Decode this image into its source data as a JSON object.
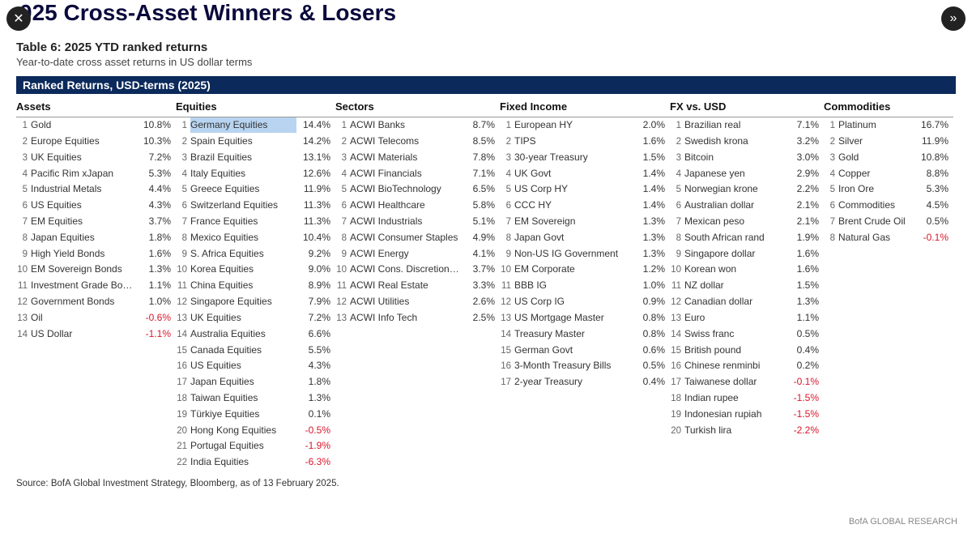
{
  "title": "025 Cross-Asset Winners & Losers",
  "table_caption": "Table 6: 2025 YTD ranked returns",
  "subcaption": "Year-to-date cross asset returns in US dollar terms",
  "banner": "Ranked Returns, USD-terms (2025)",
  "source": "Source: BofA Global Investment Strategy, Bloomberg, as of 13 February 2025.",
  "brand": "BofA GLOBAL RESEARCH",
  "colors": {
    "heading": "#0a0a3c",
    "banner_bg": "#0b2a5b",
    "banner_fg": "#ffffff",
    "negative": "#d6172b",
    "highlight_bg": "#b8d4f0",
    "text": "#333333",
    "rank": "#666666"
  },
  "columns": [
    {
      "header": "Assets",
      "rows": [
        {
          "rank": "1",
          "label": "Gold",
          "val": "10.8%"
        },
        {
          "rank": "2",
          "label": "Europe Equities",
          "val": "10.3%"
        },
        {
          "rank": "3",
          "label": "UK Equities",
          "val": "7.2%"
        },
        {
          "rank": "4",
          "label": "Pacific Rim xJapan",
          "val": "5.3%"
        },
        {
          "rank": "5",
          "label": "Industrial Metals",
          "val": "4.4%"
        },
        {
          "rank": "6",
          "label": "US Equities",
          "val": "4.3%"
        },
        {
          "rank": "7",
          "label": "EM Equities",
          "val": "3.7%"
        },
        {
          "rank": "8",
          "label": "Japan Equities",
          "val": "1.8%"
        },
        {
          "rank": "9",
          "label": "High Yield Bonds",
          "val": "1.6%"
        },
        {
          "rank": "10",
          "label": "EM Sovereign Bonds",
          "val": "1.3%"
        },
        {
          "rank": "11",
          "label": "Investment Grade Bonds",
          "val": "1.1%"
        },
        {
          "rank": "12",
          "label": "Government Bonds",
          "val": "1.0%"
        },
        {
          "rank": "13",
          "label": "Oil",
          "val": "-0.6%",
          "neg": true
        },
        {
          "rank": "14",
          "label": "US Dollar",
          "val": "-1.1%",
          "neg": true
        }
      ]
    },
    {
      "header": "Equities",
      "rows": [
        {
          "rank": "1",
          "label": "Germany Equities",
          "val": "14.4%",
          "hl": true
        },
        {
          "rank": "2",
          "label": "Spain Equities",
          "val": "14.2%"
        },
        {
          "rank": "3",
          "label": "Brazil Equities",
          "val": "13.1%"
        },
        {
          "rank": "4",
          "label": "Italy Equities",
          "val": "12.6%"
        },
        {
          "rank": "5",
          "label": "Greece Equities",
          "val": "11.9%"
        },
        {
          "rank": "6",
          "label": "Switzerland Equities",
          "val": "11.3%"
        },
        {
          "rank": "7",
          "label": "France Equities",
          "val": "11.3%"
        },
        {
          "rank": "8",
          "label": "Mexico Equities",
          "val": "10.4%"
        },
        {
          "rank": "9",
          "label": "S. Africa Equities",
          "val": "9.2%"
        },
        {
          "rank": "10",
          "label": "Korea Equities",
          "val": "9.0%"
        },
        {
          "rank": "11",
          "label": "China Equities",
          "val": "8.9%"
        },
        {
          "rank": "12",
          "label": "Singapore Equities",
          "val": "7.9%"
        },
        {
          "rank": "13",
          "label": "UK Equities",
          "val": "7.2%"
        },
        {
          "rank": "14",
          "label": "Australia Equities",
          "val": "6.6%"
        },
        {
          "rank": "15",
          "label": "Canada Equities",
          "val": "5.5%"
        },
        {
          "rank": "16",
          "label": "US Equities",
          "val": "4.3%"
        },
        {
          "rank": "17",
          "label": "Japan Equities",
          "val": "1.8%"
        },
        {
          "rank": "18",
          "label": "Taiwan Equities",
          "val": "1.3%"
        },
        {
          "rank": "19",
          "label": "Türkiye Equities",
          "val": "0.1%"
        },
        {
          "rank": "20",
          "label": "Hong Kong Equities",
          "val": "-0.5%",
          "neg": true
        },
        {
          "rank": "21",
          "label": "Portugal Equities",
          "val": "-1.9%",
          "neg": true
        },
        {
          "rank": "22",
          "label": "India Equities",
          "val": "-6.3%",
          "neg": true
        }
      ]
    },
    {
      "header": "Sectors",
      "rows": [
        {
          "rank": "1",
          "label": "ACWI Banks",
          "val": "8.7%"
        },
        {
          "rank": "2",
          "label": "ACWI Telecoms",
          "val": "8.5%"
        },
        {
          "rank": "3",
          "label": "ACWI Materials",
          "val": "7.8%"
        },
        {
          "rank": "4",
          "label": "ACWI Financials",
          "val": "7.1%"
        },
        {
          "rank": "5",
          "label": "ACWI BioTechnology",
          "val": "6.5%"
        },
        {
          "rank": "6",
          "label": "ACWI Healthcare",
          "val": "5.8%"
        },
        {
          "rank": "7",
          "label": "ACWI Industrials",
          "val": "5.1%"
        },
        {
          "rank": "8",
          "label": "ACWI Consumer Staples",
          "val": "4.9%"
        },
        {
          "rank": "9",
          "label": "ACWI Energy",
          "val": "4.1%"
        },
        {
          "rank": "10",
          "label": "ACWI Cons. Discretionary",
          "val": "3.7%"
        },
        {
          "rank": "11",
          "label": "ACWI Real Estate",
          "val": "3.3%"
        },
        {
          "rank": "12",
          "label": "ACWI Utilities",
          "val": "2.6%"
        },
        {
          "rank": "13",
          "label": "ACWI Info Tech",
          "val": "2.5%"
        }
      ]
    },
    {
      "header": "Fixed Income",
      "rows": [
        {
          "rank": "1",
          "label": "European HY",
          "val": "2.0%"
        },
        {
          "rank": "2",
          "label": "TIPS",
          "val": "1.6%"
        },
        {
          "rank": "3",
          "label": "30-year Treasury",
          "val": "1.5%"
        },
        {
          "rank": "4",
          "label": "UK Govt",
          "val": "1.4%"
        },
        {
          "rank": "5",
          "label": "US Corp HY",
          "val": "1.4%"
        },
        {
          "rank": "6",
          "label": "CCC HY",
          "val": "1.4%"
        },
        {
          "rank": "7",
          "label": "EM Sovereign",
          "val": "1.3%"
        },
        {
          "rank": "8",
          "label": "Japan Govt",
          "val": "1.3%"
        },
        {
          "rank": "9",
          "label": "Non-US IG Government",
          "val": "1.3%"
        },
        {
          "rank": "10",
          "label": "EM Corporate",
          "val": "1.2%"
        },
        {
          "rank": "11",
          "label": "BBB IG",
          "val": "1.0%"
        },
        {
          "rank": "12",
          "label": "US Corp IG",
          "val": "0.9%"
        },
        {
          "rank": "13",
          "label": "US Mortgage Master",
          "val": "0.8%"
        },
        {
          "rank": "14",
          "label": "Treasury Master",
          "val": "0.8%"
        },
        {
          "rank": "15",
          "label": "German Govt",
          "val": "0.6%"
        },
        {
          "rank": "16",
          "label": "3-Month Treasury Bills",
          "val": "0.5%"
        },
        {
          "rank": "17",
          "label": "2-year Treasury",
          "val": "0.4%"
        }
      ]
    },
    {
      "header": "FX vs. USD",
      "rows": [
        {
          "rank": "1",
          "label": "Brazilian real",
          "val": "7.1%"
        },
        {
          "rank": "2",
          "label": "Swedish krona",
          "val": "3.2%"
        },
        {
          "rank": "3",
          "label": "Bitcoin",
          "val": "3.0%"
        },
        {
          "rank": "4",
          "label": "Japanese yen",
          "val": "2.9%"
        },
        {
          "rank": "5",
          "label": "Norwegian krone",
          "val": "2.2%"
        },
        {
          "rank": "6",
          "label": "Australian dollar",
          "val": "2.1%"
        },
        {
          "rank": "7",
          "label": "Mexican peso",
          "val": "2.1%"
        },
        {
          "rank": "8",
          "label": "South African rand",
          "val": "1.9%"
        },
        {
          "rank": "9",
          "label": "Singapore dollar",
          "val": "1.6%"
        },
        {
          "rank": "10",
          "label": "Korean won",
          "val": "1.6%"
        },
        {
          "rank": "11",
          "label": "NZ dollar",
          "val": "1.5%"
        },
        {
          "rank": "12",
          "label": "Canadian dollar",
          "val": "1.3%"
        },
        {
          "rank": "13",
          "label": "Euro",
          "val": "1.1%"
        },
        {
          "rank": "14",
          "label": "Swiss franc",
          "val": "0.5%"
        },
        {
          "rank": "15",
          "label": "British pound",
          "val": "0.4%"
        },
        {
          "rank": "16",
          "label": "Chinese renminbi",
          "val": "0.2%"
        },
        {
          "rank": "17",
          "label": "Taiwanese dollar",
          "val": "-0.1%",
          "neg": true
        },
        {
          "rank": "18",
          "label": "Indian rupee",
          "val": "-1.5%",
          "neg": true
        },
        {
          "rank": "19",
          "label": "Indonesian rupiah",
          "val": "-1.5%",
          "neg": true
        },
        {
          "rank": "20",
          "label": "Turkish lira",
          "val": "-2.2%",
          "neg": true
        }
      ]
    },
    {
      "header": "Commodities",
      "rows": [
        {
          "rank": "1",
          "label": "Platinum",
          "val": "16.7%"
        },
        {
          "rank": "2",
          "label": "Silver",
          "val": "11.9%"
        },
        {
          "rank": "3",
          "label": "Gold",
          "val": "10.8%"
        },
        {
          "rank": "4",
          "label": "Copper",
          "val": "8.8%"
        },
        {
          "rank": "5",
          "label": "Iron Ore",
          "val": "5.3%"
        },
        {
          "rank": "6",
          "label": "Commodities",
          "val": "4.5%"
        },
        {
          "rank": "7",
          "label": "Brent Crude Oil",
          "val": "0.5%"
        },
        {
          "rank": "8",
          "label": "Natural Gas",
          "val": "-0.1%",
          "neg": true
        }
      ]
    }
  ]
}
